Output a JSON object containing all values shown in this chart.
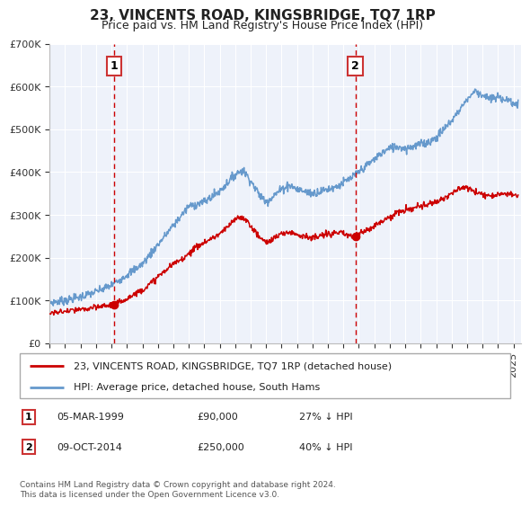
{
  "title": "23, VINCENTS ROAD, KINGSBRIDGE, TQ7 1RP",
  "subtitle": "Price paid vs. HM Land Registry's House Price Index (HPI)",
  "legend_line1": "23, VINCENTS ROAD, KINGSBRIDGE, TQ7 1RP (detached house)",
  "legend_line2": "HPI: Average price, detached house, South Hams",
  "annotation1_label": "1",
  "annotation1_date": "05-MAR-1999",
  "annotation1_price": "£90,000",
  "annotation1_hpi": "27% ↓ HPI",
  "annotation1_year": 1999.17,
  "annotation1_value": 90000,
  "annotation2_label": "2",
  "annotation2_date": "09-OCT-2014",
  "annotation2_price": "£250,000",
  "annotation2_hpi": "40% ↓ HPI",
  "annotation2_year": 2014.77,
  "annotation2_value": 250000,
  "red_color": "#cc0000",
  "blue_color": "#6699cc",
  "plot_bg": "#eef2fa",
  "grid_color": "#ffffff",
  "footer_text": "Contains HM Land Registry data © Crown copyright and database right 2024.\nThis data is licensed under the Open Government Licence v3.0.",
  "ylim": [
    0,
    700000
  ],
  "xlim_start": 1995,
  "xlim_end": 2025.5,
  "hpi_anchors_x": [
    1995.0,
    1996.0,
    1997.0,
    1998.0,
    1999.0,
    2000.0,
    2001.0,
    2002.0,
    2003.0,
    2004.0,
    2005.0,
    2006.0,
    2007.0,
    2007.5,
    2008.0,
    2008.5,
    2009.0,
    2009.5,
    2010.0,
    2010.5,
    2011.0,
    2011.5,
    2012.0,
    2012.5,
    2013.0,
    2013.5,
    2014.0,
    2014.5,
    2015.0,
    2015.5,
    2016.0,
    2016.5,
    2017.0,
    2017.5,
    2018.0,
    2018.5,
    2019.0,
    2019.5,
    2020.0,
    2020.5,
    2021.0,
    2021.5,
    2022.0,
    2022.5,
    2023.0,
    2023.5,
    2024.0,
    2024.5,
    2025.3
  ],
  "hpi_anchors_y": [
    95000,
    100000,
    108000,
    120000,
    135000,
    160000,
    185000,
    230000,
    275000,
    320000,
    330000,
    355000,
    395000,
    405000,
    380000,
    350000,
    330000,
    345000,
    360000,
    370000,
    360000,
    355000,
    350000,
    355000,
    360000,
    365000,
    375000,
    385000,
    400000,
    415000,
    430000,
    445000,
    455000,
    460000,
    455000,
    460000,
    465000,
    470000,
    480000,
    500000,
    520000,
    545000,
    570000,
    590000,
    580000,
    570000,
    575000,
    570000,
    555000
  ],
  "red_anchors_x": [
    1995.0,
    1995.5,
    1996.0,
    1996.5,
    1997.0,
    1997.5,
    1998.0,
    1998.5,
    1999.0,
    1999.5,
    2000.0,
    2000.5,
    2001.0,
    2001.5,
    2002.0,
    2002.5,
    2003.0,
    2003.5,
    2004.0,
    2004.5,
    2005.0,
    2005.5,
    2006.0,
    2006.5,
    2007.0,
    2007.5,
    2008.0,
    2008.5,
    2009.0,
    2009.5,
    2010.0,
    2010.5,
    2011.0,
    2011.5,
    2012.0,
    2012.5,
    2013.0,
    2013.5,
    2014.0,
    2014.5,
    2015.0,
    2015.5,
    2016.0,
    2016.5,
    2017.0,
    2017.5,
    2018.0,
    2018.5,
    2019.0,
    2019.5,
    2020.0,
    2020.5,
    2021.0,
    2021.5,
    2022.0,
    2022.5,
    2023.0,
    2023.5,
    2024.0,
    2024.5,
    2025.3
  ],
  "red_anchors_y": [
    70000,
    72000,
    74000,
    76000,
    78000,
    80000,
    83000,
    87000,
    90000,
    95000,
    105000,
    115000,
    125000,
    138000,
    155000,
    170000,
    185000,
    195000,
    210000,
    225000,
    235000,
    245000,
    255000,
    270000,
    290000,
    295000,
    275000,
    250000,
    235000,
    245000,
    255000,
    260000,
    255000,
    250000,
    245000,
    250000,
    255000,
    258000,
    255000,
    250000,
    255000,
    265000,
    275000,
    285000,
    295000,
    305000,
    310000,
    315000,
    320000,
    325000,
    330000,
    340000,
    350000,
    360000,
    365000,
    355000,
    348000,
    345000,
    348000,
    350000,
    345000
  ]
}
